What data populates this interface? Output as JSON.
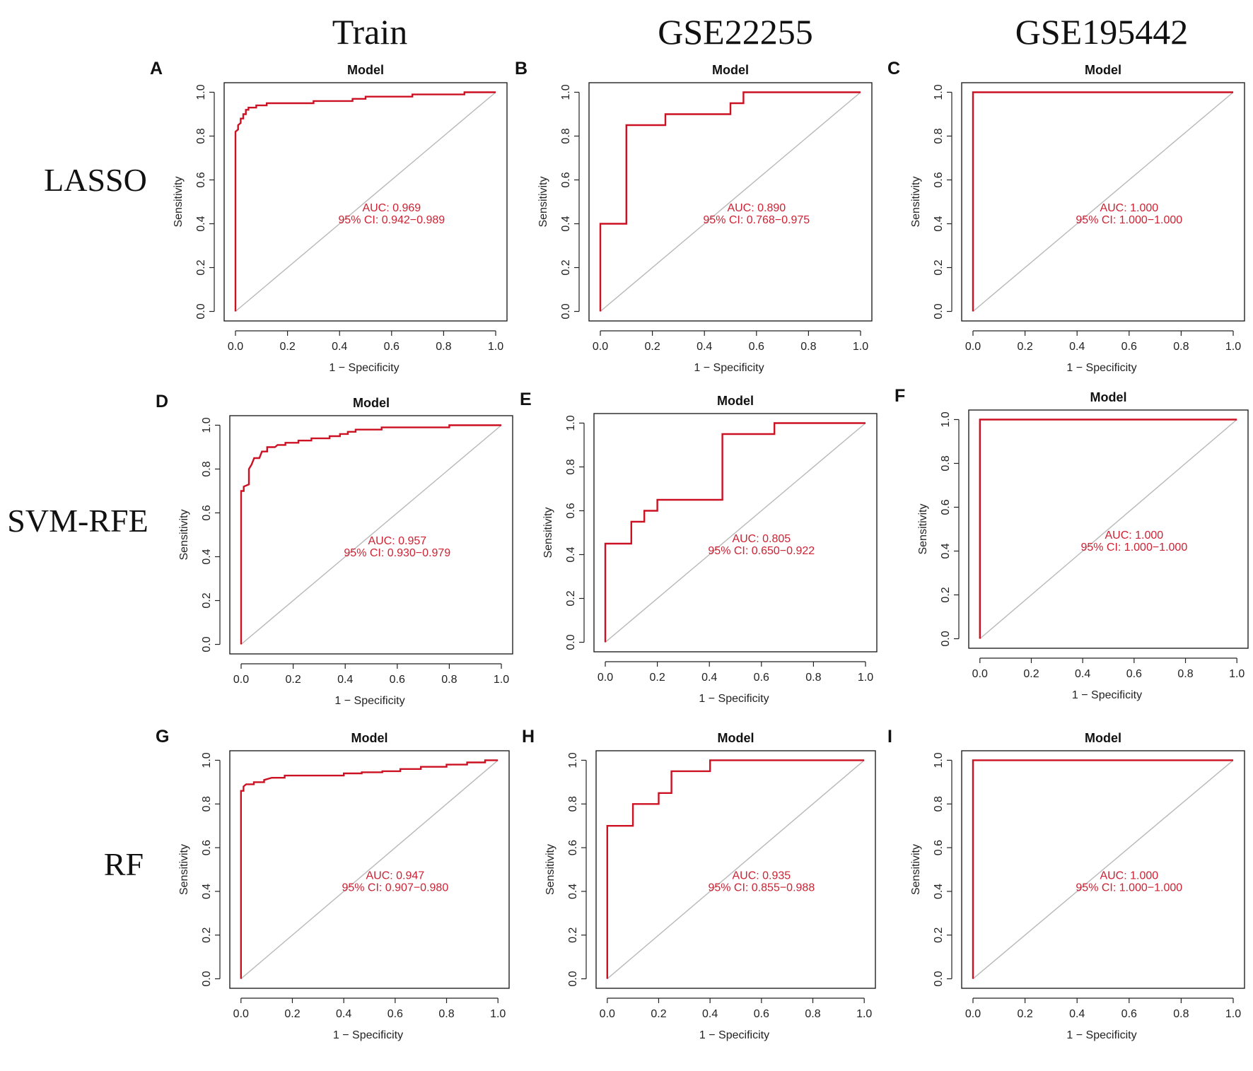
{
  "column_headers": [
    "Train",
    "GSE22255",
    "GSE195442"
  ],
  "row_headers": [
    "LASSO",
    "SVM-RFE",
    "RF"
  ],
  "colors": {
    "roc": "#cc1122",
    "diagonal": "#b8b8b8",
    "annotation": "#cc2233",
    "frame": "#222222"
  },
  "chart_data": [
    {
      "type": "line",
      "panel": "A",
      "method": "LASSO",
      "dataset": "Train",
      "title": "Model",
      "xlabel": "1 − Specificity",
      "ylabel": "Sensitivity",
      "xlim": [
        0,
        1
      ],
      "ylim": [
        0,
        1
      ],
      "xticks": [
        "0.0",
        "0.2",
        "0.4",
        "0.6",
        "0.8",
        "1.0"
      ],
      "yticks": [
        "0.0",
        "0.2",
        "0.4",
        "0.6",
        "0.8",
        "1.0"
      ],
      "auc": "AUC: 0.969",
      "ci": "95% CI: 0.942−0.989",
      "roc": [
        [
          0,
          0
        ],
        [
          0,
          0.82
        ],
        [
          0.01,
          0.83
        ],
        [
          0.01,
          0.85
        ],
        [
          0.02,
          0.86
        ],
        [
          0.02,
          0.88
        ],
        [
          0.03,
          0.88
        ],
        [
          0.03,
          0.9
        ],
        [
          0.04,
          0.9
        ],
        [
          0.04,
          0.92
        ],
        [
          0.05,
          0.92
        ],
        [
          0.05,
          0.93
        ],
        [
          0.08,
          0.93
        ],
        [
          0.08,
          0.94
        ],
        [
          0.12,
          0.94
        ],
        [
          0.12,
          0.95
        ],
        [
          0.3,
          0.95
        ],
        [
          0.3,
          0.96
        ],
        [
          0.45,
          0.96
        ],
        [
          0.45,
          0.97
        ],
        [
          0.5,
          0.97
        ],
        [
          0.5,
          0.98
        ],
        [
          0.68,
          0.98
        ],
        [
          0.68,
          0.99
        ],
        [
          0.88,
          0.99
        ],
        [
          0.88,
          1
        ],
        [
          1,
          1
        ]
      ]
    },
    {
      "type": "line",
      "panel": "B",
      "method": "LASSO",
      "dataset": "GSE22255",
      "title": "Model",
      "xlabel": "1 − Specificity",
      "ylabel": "Sensitivity",
      "xlim": [
        0,
        1
      ],
      "ylim": [
        0,
        1
      ],
      "xticks": [
        "0.0",
        "0.2",
        "0.4",
        "0.6",
        "0.8",
        "1.0"
      ],
      "yticks": [
        "0.0",
        "0.2",
        "0.4",
        "0.6",
        "0.8",
        "1.0"
      ],
      "auc": "AUC: 0.890",
      "ci": "95% CI: 0.768−0.975",
      "roc": [
        [
          0,
          0
        ],
        [
          0,
          0.4
        ],
        [
          0.1,
          0.4
        ],
        [
          0.1,
          0.85
        ],
        [
          0.25,
          0.85
        ],
        [
          0.25,
          0.9
        ],
        [
          0.5,
          0.9
        ],
        [
          0.5,
          0.95
        ],
        [
          0.55,
          0.95
        ],
        [
          0.55,
          1
        ],
        [
          1,
          1
        ]
      ]
    },
    {
      "type": "line",
      "panel": "C",
      "method": "LASSO",
      "dataset": "GSE195442",
      "title": "Model",
      "xlabel": "1 − Specificity",
      "ylabel": "Sensitivity",
      "xlim": [
        0,
        1
      ],
      "ylim": [
        0,
        1
      ],
      "xticks": [
        "0.0",
        "0.2",
        "0.4",
        "0.6",
        "0.8",
        "1.0"
      ],
      "yticks": [
        "0.0",
        "0.2",
        "0.4",
        "0.6",
        "0.8",
        "1.0"
      ],
      "auc": "AUC: 1.000",
      "ci": "95% CI: 1.000−1.000",
      "roc": [
        [
          0,
          0
        ],
        [
          0,
          1
        ],
        [
          1,
          1
        ]
      ]
    },
    {
      "type": "line",
      "panel": "D",
      "method": "SVM-RFE",
      "dataset": "Train",
      "title": "Model",
      "xlabel": "1 − Specificity",
      "ylabel": "Sensitivity",
      "xlim": [
        0,
        1
      ],
      "ylim": [
        0,
        1
      ],
      "xticks": [
        "0.0",
        "0.2",
        "0.4",
        "0.6",
        "0.8",
        "1.0"
      ],
      "yticks": [
        "0.0",
        "0.2",
        "0.4",
        "0.6",
        "0.8",
        "1.0"
      ],
      "auc": "AUC: 0.957",
      "ci": "95% CI: 0.930−0.979",
      "roc": [
        [
          0,
          0
        ],
        [
          0,
          0.7
        ],
        [
          0.01,
          0.7
        ],
        [
          0.01,
          0.72
        ],
        [
          0.03,
          0.73
        ],
        [
          0.03,
          0.8
        ],
        [
          0.04,
          0.82
        ],
        [
          0.05,
          0.85
        ],
        [
          0.07,
          0.85
        ],
        [
          0.08,
          0.88
        ],
        [
          0.1,
          0.88
        ],
        [
          0.1,
          0.9
        ],
        [
          0.13,
          0.9
        ],
        [
          0.14,
          0.91
        ],
        [
          0.17,
          0.91
        ],
        [
          0.17,
          0.92
        ],
        [
          0.22,
          0.92
        ],
        [
          0.22,
          0.93
        ],
        [
          0.27,
          0.93
        ],
        [
          0.27,
          0.94
        ],
        [
          0.34,
          0.94
        ],
        [
          0.34,
          0.95
        ],
        [
          0.38,
          0.95
        ],
        [
          0.38,
          0.96
        ],
        [
          0.41,
          0.96
        ],
        [
          0.41,
          0.97
        ],
        [
          0.44,
          0.97
        ],
        [
          0.44,
          0.98
        ],
        [
          0.54,
          0.98
        ],
        [
          0.54,
          0.99
        ],
        [
          0.8,
          0.99
        ],
        [
          0.8,
          1
        ],
        [
          1,
          1
        ]
      ]
    },
    {
      "type": "line",
      "panel": "E",
      "method": "SVM-RFE",
      "dataset": "GSE22255",
      "title": "Model",
      "xlabel": "1 − Specificity",
      "ylabel": "Sensitivity",
      "xlim": [
        0,
        1
      ],
      "ylim": [
        0,
        1
      ],
      "xticks": [
        "0.0",
        "0.2",
        "0.4",
        "0.6",
        "0.8",
        "1.0"
      ],
      "yticks": [
        "0.0",
        "0.2",
        "0.4",
        "0.6",
        "0.8",
        "1.0"
      ],
      "auc": "AUC: 0.805",
      "ci": "95% CI: 0.650−0.922",
      "roc": [
        [
          0,
          0
        ],
        [
          0,
          0.45
        ],
        [
          0.1,
          0.45
        ],
        [
          0.1,
          0.55
        ],
        [
          0.15,
          0.55
        ],
        [
          0.15,
          0.6
        ],
        [
          0.2,
          0.6
        ],
        [
          0.2,
          0.65
        ],
        [
          0.45,
          0.65
        ],
        [
          0.45,
          0.95
        ],
        [
          0.65,
          0.95
        ],
        [
          0.65,
          1
        ],
        [
          1,
          1
        ]
      ]
    },
    {
      "type": "line",
      "panel": "F",
      "method": "SVM-RFE",
      "dataset": "GSE195442",
      "title": "Model",
      "xlabel": "1 − Specificity",
      "ylabel": "Sensitivity",
      "xlim": [
        0,
        1
      ],
      "ylim": [
        0,
        1
      ],
      "xticks": [
        "0.0",
        "0.2",
        "0.4",
        "0.6",
        "0.8",
        "1.0"
      ],
      "yticks": [
        "0.0",
        "0.2",
        "0.4",
        "0.6",
        "0.8",
        "1.0"
      ],
      "auc": "AUC: 1.000",
      "ci": "95% CI: 1.000−1.000",
      "roc": [
        [
          0,
          0
        ],
        [
          0,
          1
        ],
        [
          1,
          1
        ]
      ]
    },
    {
      "type": "line",
      "panel": "G",
      "method": "RF",
      "dataset": "Train",
      "title": "Model",
      "xlabel": "1 − Specificity",
      "ylabel": "Sensitivity",
      "xlim": [
        0,
        1
      ],
      "ylim": [
        0,
        1
      ],
      "xticks": [
        "0.0",
        "0.2",
        "0.4",
        "0.6",
        "0.8",
        "1.0"
      ],
      "yticks": [
        "0.0",
        "0.2",
        "0.4",
        "0.6",
        "0.8",
        "1.0"
      ],
      "auc": "AUC: 0.947",
      "ci": "95% CI: 0.907−0.980",
      "roc": [
        [
          0,
          0
        ],
        [
          0,
          0.86
        ],
        [
          0.01,
          0.86
        ],
        [
          0.01,
          0.88
        ],
        [
          0.02,
          0.89
        ],
        [
          0.05,
          0.89
        ],
        [
          0.05,
          0.9
        ],
        [
          0.09,
          0.9
        ],
        [
          0.09,
          0.91
        ],
        [
          0.12,
          0.92
        ],
        [
          0.17,
          0.92
        ],
        [
          0.17,
          0.93
        ],
        [
          0.4,
          0.93
        ],
        [
          0.4,
          0.94
        ],
        [
          0.47,
          0.94
        ],
        [
          0.47,
          0.945
        ],
        [
          0.55,
          0.945
        ],
        [
          0.55,
          0.95
        ],
        [
          0.62,
          0.95
        ],
        [
          0.62,
          0.96
        ],
        [
          0.7,
          0.96
        ],
        [
          0.7,
          0.97
        ],
        [
          0.8,
          0.97
        ],
        [
          0.8,
          0.98
        ],
        [
          0.88,
          0.98
        ],
        [
          0.88,
          0.99
        ],
        [
          0.95,
          0.99
        ],
        [
          0.95,
          1
        ],
        [
          1,
          1
        ]
      ]
    },
    {
      "type": "line",
      "panel": "H",
      "method": "RF",
      "dataset": "GSE22255",
      "title": "Model",
      "xlabel": "1 − Specificity",
      "ylabel": "Sensitivity",
      "xlim": [
        0,
        1
      ],
      "ylim": [
        0,
        1
      ],
      "xticks": [
        "0.0",
        "0.2",
        "0.4",
        "0.6",
        "0.8",
        "1.0"
      ],
      "yticks": [
        "0.0",
        "0.2",
        "0.4",
        "0.6",
        "0.8",
        "1.0"
      ],
      "auc": "AUC: 0.935",
      "ci": "95% CI: 0.855−0.988",
      "roc": [
        [
          0,
          0
        ],
        [
          0,
          0.7
        ],
        [
          0.1,
          0.7
        ],
        [
          0.1,
          0.8
        ],
        [
          0.2,
          0.8
        ],
        [
          0.2,
          0.85
        ],
        [
          0.25,
          0.85
        ],
        [
          0.25,
          0.95
        ],
        [
          0.4,
          0.95
        ],
        [
          0.4,
          1
        ],
        [
          1,
          1
        ]
      ]
    },
    {
      "type": "line",
      "panel": "I",
      "method": "RF",
      "dataset": "GSE195442",
      "title": "Model",
      "xlabel": "1 − Specificity",
      "ylabel": "Sensitivity",
      "xlim": [
        0,
        1
      ],
      "ylim": [
        0,
        1
      ],
      "xticks": [
        "0.0",
        "0.2",
        "0.4",
        "0.6",
        "0.8",
        "1.0"
      ],
      "yticks": [
        "0.0",
        "0.2",
        "0.4",
        "0.6",
        "0.8",
        "1.0"
      ],
      "auc": "AUC: 1.000",
      "ci": "95% CI: 1.000−1.000",
      "roc": [
        [
          0,
          0
        ],
        [
          0,
          1
        ],
        [
          1,
          1
        ]
      ]
    }
  ]
}
